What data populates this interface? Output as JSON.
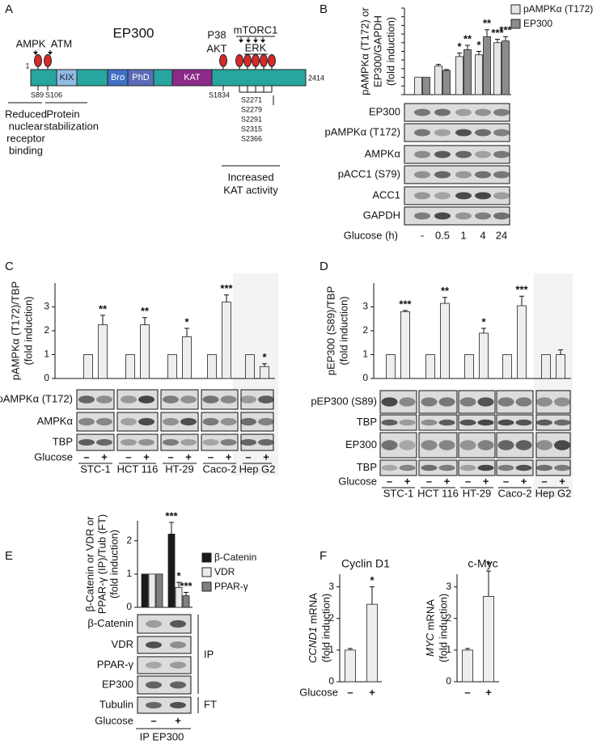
{
  "panel_labels": [
    "A",
    "B",
    "C",
    "D",
    "E",
    "F"
  ],
  "diagram": {
    "title": "EP300",
    "start": "1",
    "end": "2414",
    "domains": [
      "KIX",
      "Bro",
      "PhD",
      "KAT"
    ],
    "kinases": [
      "AMPK",
      "ATM",
      "P38",
      "AKT",
      "mTORC1",
      "ERK"
    ],
    "sites": [
      "S89",
      "S106",
      "S1834",
      "S2271",
      "S2279",
      "S2291",
      "S2315",
      "S2366"
    ],
    "effects": [
      [
        "Reduced",
        "nuclear",
        "receptor",
        "binding"
      ],
      [
        "Protein",
        "stabilization"
      ],
      [
        "Increased",
        "KAT activity"
      ]
    ]
  },
  "chart_data": [
    {
      "type": "bar",
      "ylabel": [
        "pAMPKα (T172) or",
        "EP300/GAPDH",
        "(fold induction)"
      ],
      "xlabel": "Glucose (h)",
      "categories": [
        "-",
        "0.5",
        "1",
        "4",
        "24"
      ],
      "series": [
        {
          "name": "pAMPKα (T172)",
          "color": "#e6e6e6",
          "values": [
            1,
            1.65,
            2.2,
            2.3,
            3.0
          ],
          "errors": [
            null,
            0.1,
            0.2,
            0.2,
            0.2
          ],
          "significance": [
            null,
            null,
            "*",
            "*",
            "***"
          ]
        },
        {
          "name": "EP300",
          "color": "#8c8c8c",
          "values": [
            1,
            1.4,
            2.6,
            3.35,
            3.1
          ],
          "errors": [
            null,
            0.05,
            0.25,
            0.4,
            0.25
          ],
          "significance": [
            null,
            null,
            "**",
            "**",
            "***"
          ]
        }
      ],
      "ylim": [
        0,
        5
      ],
      "yticks": [
        0,
        0.5,
        1,
        1.5,
        2,
        2.5,
        3,
        3.5,
        4,
        4.5,
        5
      ],
      "ytick_labels": false,
      "legend": "top-right"
    },
    {
      "type": "bar",
      "ylabel": [
        "pAMPKα (T172)/TBP",
        "(fold induction)"
      ],
      "xlabel": "Glucose",
      "groups": [
        "STC-1",
        "HCT 116",
        "HT-29",
        "Caco-2",
        "Hep G2"
      ],
      "categories": [
        "–",
        "+"
      ],
      "color": "#eeeeee",
      "values": [
        [
          1,
          2.25
        ],
        [
          1,
          2.25
        ],
        [
          1,
          1.75
        ],
        [
          1,
          3.2
        ],
        [
          1,
          0.5
        ]
      ],
      "errors": [
        [
          null,
          0.4
        ],
        [
          null,
          0.3
        ],
        [
          null,
          0.35
        ],
        [
          null,
          0.3
        ],
        [
          null,
          0.12
        ]
      ],
      "significance": [
        [
          null,
          "**"
        ],
        [
          null,
          "**"
        ],
        [
          null,
          "*"
        ],
        [
          null,
          "***"
        ],
        [
          null,
          "*"
        ]
      ],
      "ylim": [
        0,
        4
      ],
      "yticks": [
        0,
        1,
        2,
        3
      ]
    },
    {
      "type": "bar",
      "ylabel": [
        "pEP300 (S89)/TBP",
        "(fold induction)"
      ],
      "xlabel": "Glucose",
      "groups": [
        "STC-1",
        "HCT 116",
        "HT-29",
        "Caco-2",
        "Hep G2"
      ],
      "categories": [
        "–",
        "+"
      ],
      "color": "#eeeeee",
      "values": [
        [
          1,
          2.8
        ],
        [
          1,
          3.15
        ],
        [
          1,
          1.9
        ],
        [
          1,
          3.05
        ],
        [
          1,
          1.0
        ]
      ],
      "errors": [
        [
          null,
          0.05
        ],
        [
          null,
          0.25
        ],
        [
          null,
          0.2
        ],
        [
          null,
          0.4
        ],
        [
          null,
          0.2
        ]
      ],
      "significance": [
        [
          null,
          "***"
        ],
        [
          null,
          "**"
        ],
        [
          null,
          "*"
        ],
        [
          null,
          "***"
        ],
        [
          null,
          null
        ]
      ],
      "ylim": [
        0,
        4
      ],
      "yticks": [
        0,
        1,
        2,
        3
      ]
    },
    {
      "type": "bar",
      "ylabel": [
        "β-Catenin or VDR or",
        "PPAR-γ (IP)/Tub (FT)",
        "(fold induction)"
      ],
      "xlabel": "Glucose",
      "categories": [
        "–",
        "+"
      ],
      "series": [
        {
          "name": "β-Catenin",
          "color": "#1a1a1a",
          "values": [
            1,
            2.2
          ],
          "errors": [
            null,
            0.35
          ],
          "significance": [
            null,
            "***"
          ]
        },
        {
          "name": "VDR",
          "color": "#ececec",
          "values": [
            1,
            0.6
          ],
          "errors": [
            null,
            0.15
          ],
          "significance": [
            null,
            "*"
          ]
        },
        {
          "name": "PPAR-γ",
          "color": "#808080",
          "values": [
            1,
            0.35
          ],
          "errors": [
            null,
            0.1
          ],
          "significance": [
            null,
            "***"
          ]
        }
      ],
      "ylim": [
        0,
        2.6
      ],
      "yticks": [
        0,
        1,
        2
      ],
      "legend": "right"
    },
    {
      "type": "bar",
      "title": "Cyclin D1",
      "ylabel": [
        "CCND1 mRNA",
        "(fold induction)"
      ],
      "xlabel": "Glucose",
      "categories": [
        "–",
        "+"
      ],
      "color": "#eeeeee",
      "values": [
        1,
        2.45
      ],
      "errors": [
        0.05,
        0.55
      ],
      "significance": [
        null,
        "*"
      ],
      "ylim": [
        0,
        3.4
      ],
      "yticks": [
        0,
        1,
        2,
        3
      ]
    },
    {
      "type": "bar",
      "title": "c-Myc",
      "ylabel": [
        "MYC mRNA",
        "(fold induction)"
      ],
      "categories": [
        "–",
        "+"
      ],
      "color": "#eeeeee",
      "values": [
        1,
        2.7
      ],
      "errors": [
        0.05,
        0.8
      ],
      "significance": [
        null,
        "*"
      ],
      "ylim": [
        0,
        3.4
      ],
      "yticks": [
        0,
        1,
        2,
        3
      ]
    }
  ],
  "blots": {
    "B": {
      "rows": [
        "EP300",
        "pAMPKα (T172)",
        "AMPKα",
        "pACC1 (S79)",
        "ACC1",
        "GAPDH"
      ]
    },
    "C": {
      "rows": [
        "pAMPKα (T172)",
        "AMPKα",
        "TBP"
      ]
    },
    "D": {
      "rows": [
        "pEP300 (S89)",
        "TBP",
        "EP300",
        "TBP"
      ]
    },
    "E": {
      "rows": [
        "β-Catenin",
        "VDR",
        "PPAR-γ",
        "EP300",
        "Tubulin"
      ],
      "fractions": [
        "IP",
        "FT"
      ],
      "ip_label": "IP EP300"
    }
  }
}
